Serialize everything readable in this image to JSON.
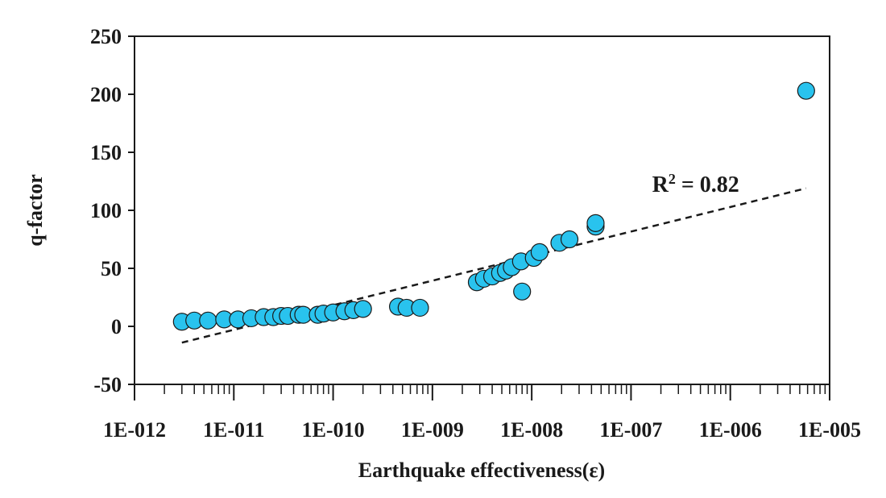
{
  "chart_data": {
    "type": "scatter",
    "title": "",
    "xlabel": "Earthquake effectiveness(ε)",
    "ylabel": "q-factor",
    "xscale": "log",
    "xlim": [
      1e-12,
      1e-05
    ],
    "ylim": [
      -50,
      250
    ],
    "x_tick_labels": [
      "1E-012",
      "1E-011",
      "1E-010",
      "1E-009",
      "1E-008",
      "1E-007",
      "1E-006",
      "1E-005"
    ],
    "y_ticks": [
      -50,
      0,
      50,
      100,
      150,
      200,
      250
    ],
    "grid": false,
    "marker_color": "#29c3ee",
    "marker_edge": "#1a1a1a",
    "points": [
      [
        3e-12,
        4
      ],
      [
        4e-12,
        5
      ],
      [
        5.5e-12,
        5
      ],
      [
        8e-12,
        6
      ],
      [
        1.1e-11,
        6
      ],
      [
        1.5e-11,
        7
      ],
      [
        2e-11,
        8
      ],
      [
        2.5e-11,
        8
      ],
      [
        3e-11,
        9
      ],
      [
        3.5e-11,
        9
      ],
      [
        4.5e-11,
        10
      ],
      [
        5e-11,
        10
      ],
      [
        7e-11,
        10
      ],
      [
        8e-11,
        11
      ],
      [
        1e-10,
        12
      ],
      [
        1.3e-10,
        13
      ],
      [
        1.6e-10,
        14
      ],
      [
        2e-10,
        15
      ],
      [
        4.5e-10,
        17
      ],
      [
        5.5e-10,
        16
      ],
      [
        7.5e-10,
        16
      ],
      [
        2.8e-09,
        38
      ],
      [
        3.3e-09,
        41
      ],
      [
        4e-09,
        43
      ],
      [
        4.8e-09,
        46
      ],
      [
        5.5e-09,
        48
      ],
      [
        6.3e-09,
        51
      ],
      [
        7.8e-09,
        56
      ],
      [
        8e-09,
        30
      ],
      [
        1.05e-08,
        59
      ],
      [
        1.2e-08,
        64
      ],
      [
        1.9e-08,
        72
      ],
      [
        2.4e-08,
        75
      ],
      [
        4.4e-08,
        86
      ],
      [
        4.4e-08,
        89
      ],
      [
        5.8e-06,
        203
      ]
    ],
    "trendline": {
      "style": "dashed",
      "x_start": 3e-12,
      "y_start": -14,
      "x_end": 5.8e-06,
      "y_end": 119
    },
    "annotation": {
      "prefix": "R",
      "superscript": "2",
      "suffix": " = 0.82",
      "anchor_x": 5e-07,
      "anchor_y": 123
    }
  }
}
